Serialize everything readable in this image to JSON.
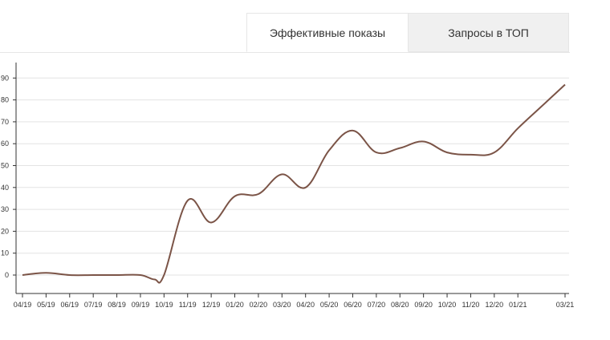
{
  "tabs": [
    {
      "label": "Эффективные показы",
      "active": true
    },
    {
      "label": "Запросы в ТОП",
      "active": false
    }
  ],
  "chart_data": {
    "type": "line",
    "title": "",
    "xlabel": "",
    "ylabel": "",
    "ylim": [
      -10,
      95
    ],
    "y_ticks": [
      0,
      10,
      20,
      30,
      40,
      50,
      60,
      70,
      80,
      90
    ],
    "grid": true,
    "line_color": "#7b5447",
    "x_ticks": [
      "04/19",
      "05/19",
      "06/19",
      "07/19",
      "08/19",
      "09/19",
      "10/19",
      "11/19",
      "12/19",
      "01/20",
      "02/20",
      "03/20",
      "04/20",
      "05/20",
      "06/20",
      "07/20",
      "08/20",
      "09/20",
      "10/20",
      "11/20",
      "12/20",
      "01/21",
      "03/21"
    ],
    "x_tick_months": [
      0,
      1,
      2,
      3,
      4,
      5,
      6,
      7,
      8,
      9,
      10,
      11,
      12,
      13,
      14,
      15,
      16,
      17,
      18,
      19,
      20,
      21,
      23
    ],
    "series": [
      {
        "x": [
          0,
          1,
          2,
          3,
          4,
          5,
          5.6,
          6,
          7,
          8,
          9,
          10,
          11,
          12,
          13,
          14,
          15,
          16,
          17,
          18,
          19,
          20,
          21,
          22,
          23
        ],
        "values": [
          0,
          1,
          0,
          0,
          0,
          0,
          -2,
          0,
          34,
          24,
          36,
          37,
          46,
          40,
          57,
          66,
          56,
          58,
          61,
          56,
          55,
          56,
          67,
          77,
          87
        ]
      }
    ]
  }
}
